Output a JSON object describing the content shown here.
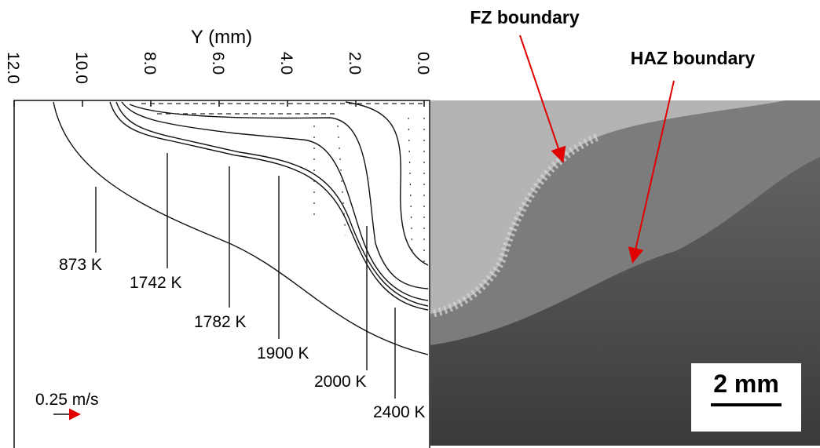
{
  "left_panel": {
    "axis_label": "Y (mm)",
    "y_ticks": [
      "12.0",
      "10.0",
      "8.0",
      "6.0",
      "4.0",
      "2.0",
      "0.0"
    ],
    "isotherms": [
      "873 K",
      "1742 K",
      "1782 K",
      "1900 K",
      "2000 K",
      "2400 K"
    ],
    "velocity_scale": "0.25 m/s"
  },
  "right_panel": {
    "annotations": [
      "FZ boundary",
      "HAZ boundary"
    ],
    "scale_bar": "2 mm"
  }
}
